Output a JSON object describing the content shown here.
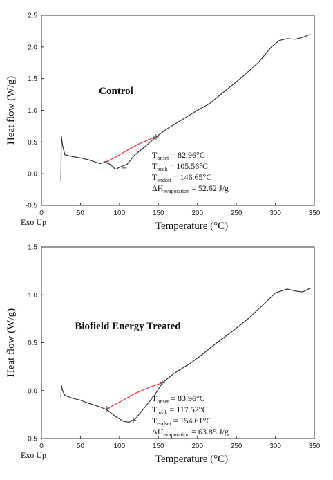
{
  "chart_data": [
    {
      "type": "line",
      "title": "Control",
      "xlabel": "Temperature (°C)",
      "ylabel": "Heat flow (W/g)",
      "note": "Exo Up",
      "xlim": [
        0,
        350
      ],
      "xticks": [
        0,
        50,
        100,
        150,
        200,
        250,
        300,
        350
      ],
      "ylim": [
        -0.5,
        2.5
      ],
      "yticks": [
        -0.5,
        0.0,
        0.5,
        1.0,
        1.5,
        2.0,
        2.5
      ],
      "annotations": [
        {
          "base": "T",
          "sub": "onset",
          "rest": " = 82.96°C"
        },
        {
          "base": "T",
          "sub": "peak",
          "rest": " = 105.56°C"
        },
        {
          "base": "T",
          "sub": "endset",
          "rest": " = 146.65°C"
        },
        {
          "base": "ΔH",
          "sub": "evaporation",
          "rest": " = 52.62 J/g"
        }
      ],
      "series": [
        {
          "color": "#333333",
          "x": [
            25,
            25.5,
            27,
            30,
            40,
            50,
            60,
            65,
            75,
            82,
            88,
            95,
            100,
            110,
            120,
            135,
            147,
            160,
            180,
            200,
            215,
            235,
            255,
            278,
            295,
            305,
            315,
            325,
            335,
            345
          ],
          "values": [
            -0.12,
            0.6,
            0.45,
            0.3,
            0.27,
            0.25,
            0.22,
            0.2,
            0.16,
            0.18,
            0.15,
            0.07,
            0.1,
            0.15,
            0.3,
            0.45,
            0.58,
            0.7,
            0.85,
            1.0,
            1.1,
            1.3,
            1.5,
            1.75,
            2.0,
            2.1,
            2.13,
            2.12,
            2.15,
            2.2
          ]
        },
        {
          "color": "#e8333a",
          "x": [
            83,
            95,
            110,
            125,
            140,
            147
          ],
          "values": [
            0.19,
            0.26,
            0.37,
            0.47,
            0.55,
            0.58
          ]
        },
        {
          "color": "#555555",
          "marker": "+",
          "x": [
            83,
            106,
            147
          ],
          "values": [
            0.19,
            0.09,
            0.58
          ]
        }
      ]
    },
    {
      "type": "line",
      "title": "Biofield Energy Treated",
      "xlabel": "Temperature (°C)",
      "ylabel": "Heat flow (W/g)",
      "note": "Exo Up",
      "xlim": [
        0,
        350
      ],
      "xticks": [
        0,
        50,
        100,
        150,
        200,
        250,
        300,
        350
      ],
      "ylim": [
        -0.5,
        1.5
      ],
      "yticks": [
        -0.5,
        0.0,
        0.5,
        1.0,
        1.5
      ],
      "annotations": [
        {
          "base": "T",
          "sub": "onset",
          "rest": " = 83.96°C"
        },
        {
          "base": "T",
          "sub": "peak",
          "rest": " = 117.52°C"
        },
        {
          "base": "T",
          "sub": "endset",
          "rest": " = 154.61°C"
        },
        {
          "base": "ΔH",
          "sub": "evaporation",
          "rest": " = 63.85 J/g"
        }
      ],
      "series": [
        {
          "color": "#333333",
          "x": [
            25,
            25.5,
            27,
            30,
            40,
            50,
            60,
            75,
            84,
            95,
            105,
            112,
            120,
            130,
            145,
            155,
            170,
            190,
            205,
            225,
            245,
            265,
            285,
            300,
            315,
            325,
            335,
            345
          ],
          "values": [
            -0.08,
            0.06,
            0.0,
            -0.05,
            -0.08,
            -0.1,
            -0.13,
            -0.17,
            -0.2,
            -0.27,
            -0.32,
            -0.33,
            -0.3,
            -0.2,
            -0.05,
            0.08,
            0.18,
            0.28,
            0.37,
            0.5,
            0.62,
            0.75,
            0.9,
            1.02,
            1.06,
            1.04,
            1.03,
            1.07
          ]
        },
        {
          "color": "#e8333a",
          "x": [
            84,
            100,
            120,
            140,
            155
          ],
          "values": [
            -0.19,
            -0.12,
            -0.03,
            0.04,
            0.08
          ]
        },
        {
          "color": "#555555",
          "marker": "+",
          "x": [
            84,
            118,
            155
          ],
          "values": [
            -0.19,
            -0.31,
            0.08
          ]
        }
      ]
    }
  ]
}
